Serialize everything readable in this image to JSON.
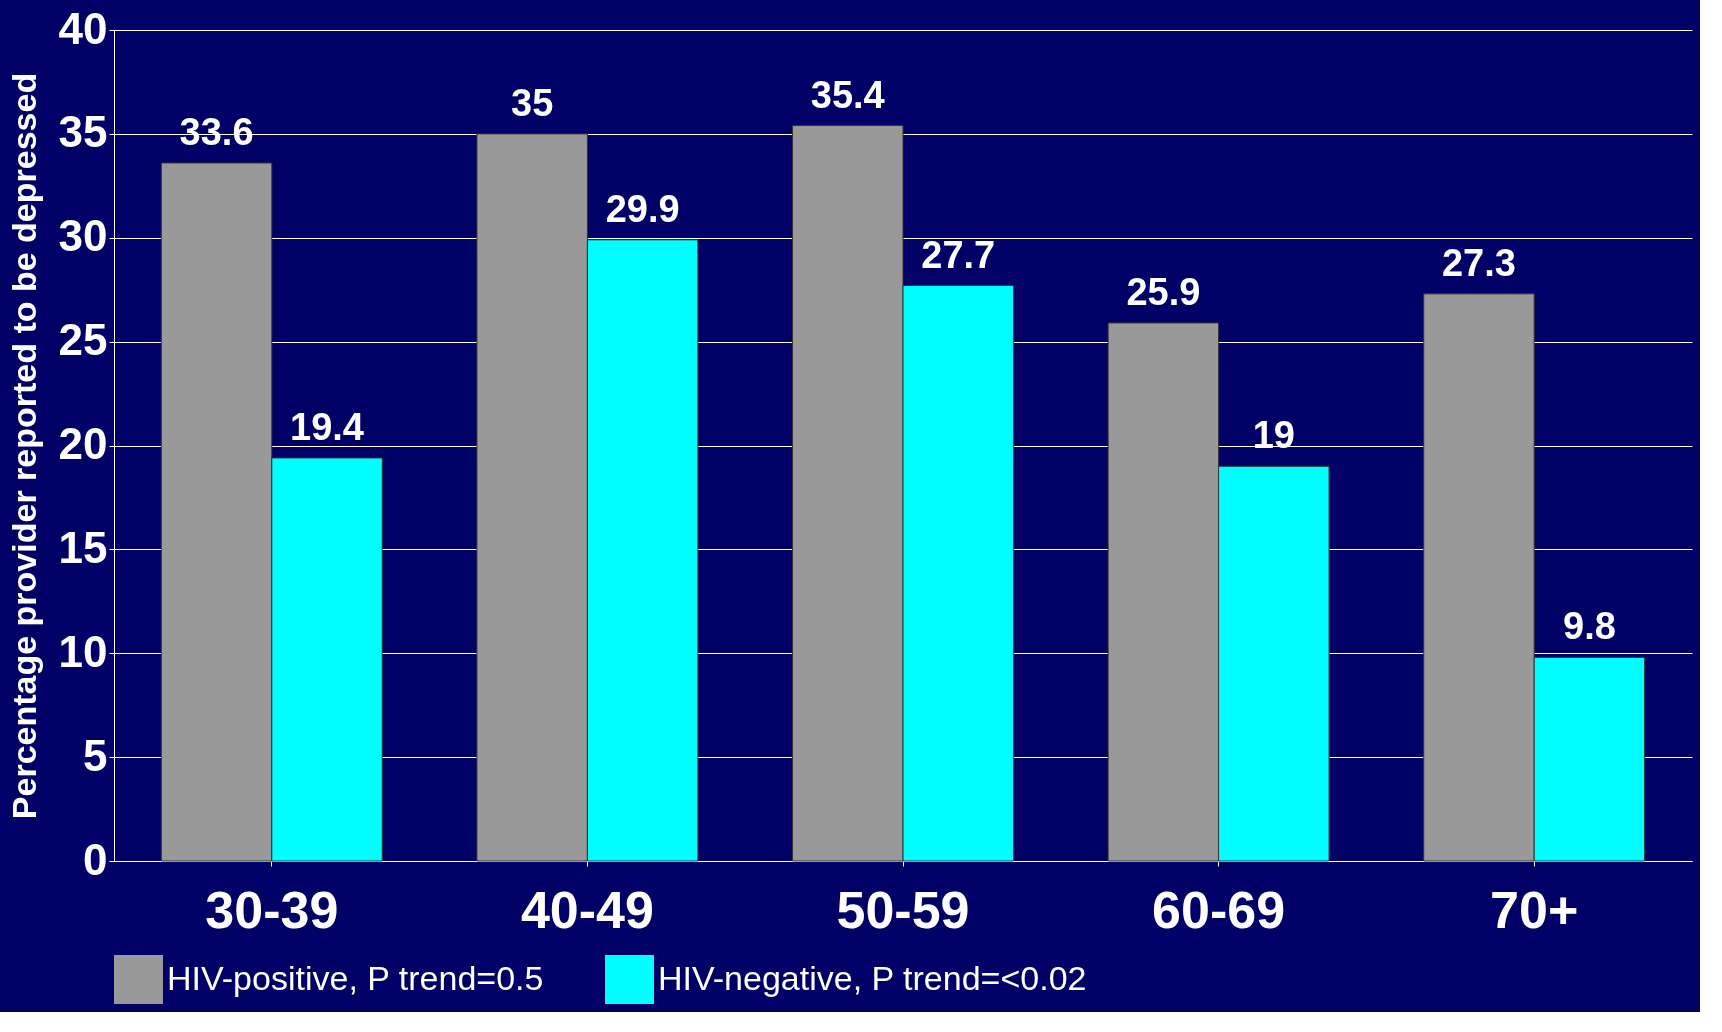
{
  "chart_data": {
    "type": "bar",
    "ylabel": "Percentage provider reported to be depressed",
    "categories": [
      "30-39",
      "40-49",
      "50-59",
      "60-69",
      "70+"
    ],
    "series": [
      {
        "name": "HIV-positive, P trend=0.5",
        "color": "#999999",
        "values": [
          33.6,
          35,
          35.4,
          25.9,
          27.3
        ]
      },
      {
        "name": "HIV-negative, P trend=<0.02",
        "color": "#00ffff",
        "values": [
          19.4,
          29.9,
          27.7,
          19,
          9.8
        ]
      }
    ],
    "ylim": [
      0,
      40
    ],
    "yticks": [
      0,
      5,
      10,
      15,
      20,
      25,
      30,
      35,
      40
    ],
    "grid": "y",
    "legend": "bottom",
    "data_labels": true
  }
}
